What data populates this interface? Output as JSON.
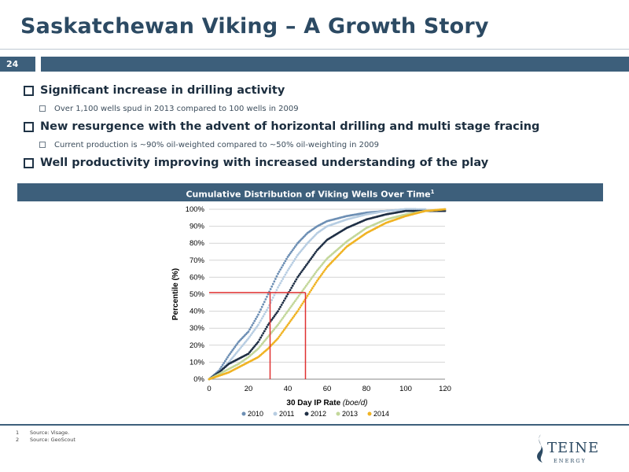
{
  "slide": {
    "title": "Saskatchewan Viking – A Growth Story",
    "number": "24"
  },
  "bullets": [
    {
      "text": "Significant increase in drilling activity",
      "sub": "Over 1,100 wells spud in 2013 compared to 100 wells in 2009"
    },
    {
      "text": "New resurgence with the advent of horizontal drilling and multi stage fracing",
      "sub": "Current production is ~90% oil-weighted compared to ~50% oil-weighting in 2009"
    },
    {
      "text": "Well productivity improving with increased understanding of the play",
      "sub": ""
    }
  ],
  "chart_banner": {
    "title": "Cumulative Distribution of Viking Wells Over Time",
    "footnote_mark": "1"
  },
  "chart_data": {
    "type": "scatter",
    "xlabel": "30 Day IP Rate",
    "xlabel_unit": "(boe/d)",
    "ylabel": "Percentile (%)",
    "xlim": [
      0,
      120
    ],
    "ylim": [
      0,
      100
    ],
    "x_ticks": [
      "0",
      "20",
      "40",
      "60",
      "80",
      "100",
      "120"
    ],
    "y_ticks": [
      "0%",
      "10%",
      "20%",
      "30%",
      "40%",
      "50%",
      "60%",
      "70%",
      "80%",
      "90%",
      "100%"
    ],
    "grid": true,
    "legend_position": "bottom",
    "series": [
      {
        "name": "2010",
        "color": "#6d8fb4",
        "x": [
          0,
          5,
          10,
          15,
          20,
          25,
          30,
          35,
          40,
          45,
          50,
          55,
          60,
          70,
          80,
          90,
          100,
          105
        ],
        "y": [
          0,
          5,
          14,
          22,
          28,
          38,
          50,
          62,
          72,
          80,
          86,
          90,
          93,
          96,
          98,
          99,
          100,
          100
        ]
      },
      {
        "name": "2011",
        "color": "#b7cde2",
        "x": [
          0,
          5,
          10,
          15,
          20,
          25,
          30,
          35,
          40,
          45,
          50,
          55,
          60,
          70,
          80,
          90,
          100,
          110
        ],
        "y": [
          0,
          4,
          10,
          17,
          24,
          32,
          42,
          54,
          64,
          73,
          80,
          86,
          90,
          94,
          97,
          99,
          100,
          100
        ]
      },
      {
        "name": "2012",
        "color": "#1f2f45",
        "x": [
          0,
          5,
          10,
          15,
          20,
          25,
          30,
          35,
          40,
          45,
          50,
          55,
          60,
          70,
          80,
          90,
          100,
          110,
          120
        ],
        "y": [
          0,
          4,
          9,
          12,
          15,
          22,
          32,
          40,
          50,
          60,
          68,
          76,
          82,
          89,
          94,
          97,
          99,
          99,
          99
        ]
      },
      {
        "name": "2013",
        "color": "#c3d79a",
        "x": [
          0,
          5,
          10,
          15,
          20,
          25,
          30,
          35,
          40,
          45,
          50,
          55,
          60,
          70,
          80,
          90,
          100,
          110,
          120
        ],
        "y": [
          0,
          3,
          6,
          9,
          13,
          18,
          25,
          32,
          40,
          48,
          56,
          64,
          71,
          81,
          89,
          94,
          97,
          99,
          100
        ]
      },
      {
        "name": "2014",
        "color": "#f0b323",
        "x": [
          0,
          5,
          10,
          15,
          20,
          25,
          30,
          35,
          40,
          45,
          50,
          55,
          60,
          70,
          80,
          90,
          100,
          110,
          120
        ],
        "y": [
          0,
          2,
          4,
          7,
          10,
          13,
          18,
          24,
          32,
          40,
          49,
          58,
          66,
          78,
          86,
          92,
          96,
          99,
          100
        ]
      }
    ],
    "reference_lines": [
      {
        "x": 31,
        "y": 51,
        "color": "#e03030"
      },
      {
        "x": 49,
        "y": 51,
        "color": "#e03030"
      }
    ]
  },
  "footnotes": [
    {
      "n": "1",
      "text": "Source: Visage."
    },
    {
      "n": "2",
      "text": "Source: GeoScout"
    }
  ],
  "logo": {
    "name": "TEINE",
    "sub": "E N E R G Y",
    "accent": "#2c4a63"
  }
}
